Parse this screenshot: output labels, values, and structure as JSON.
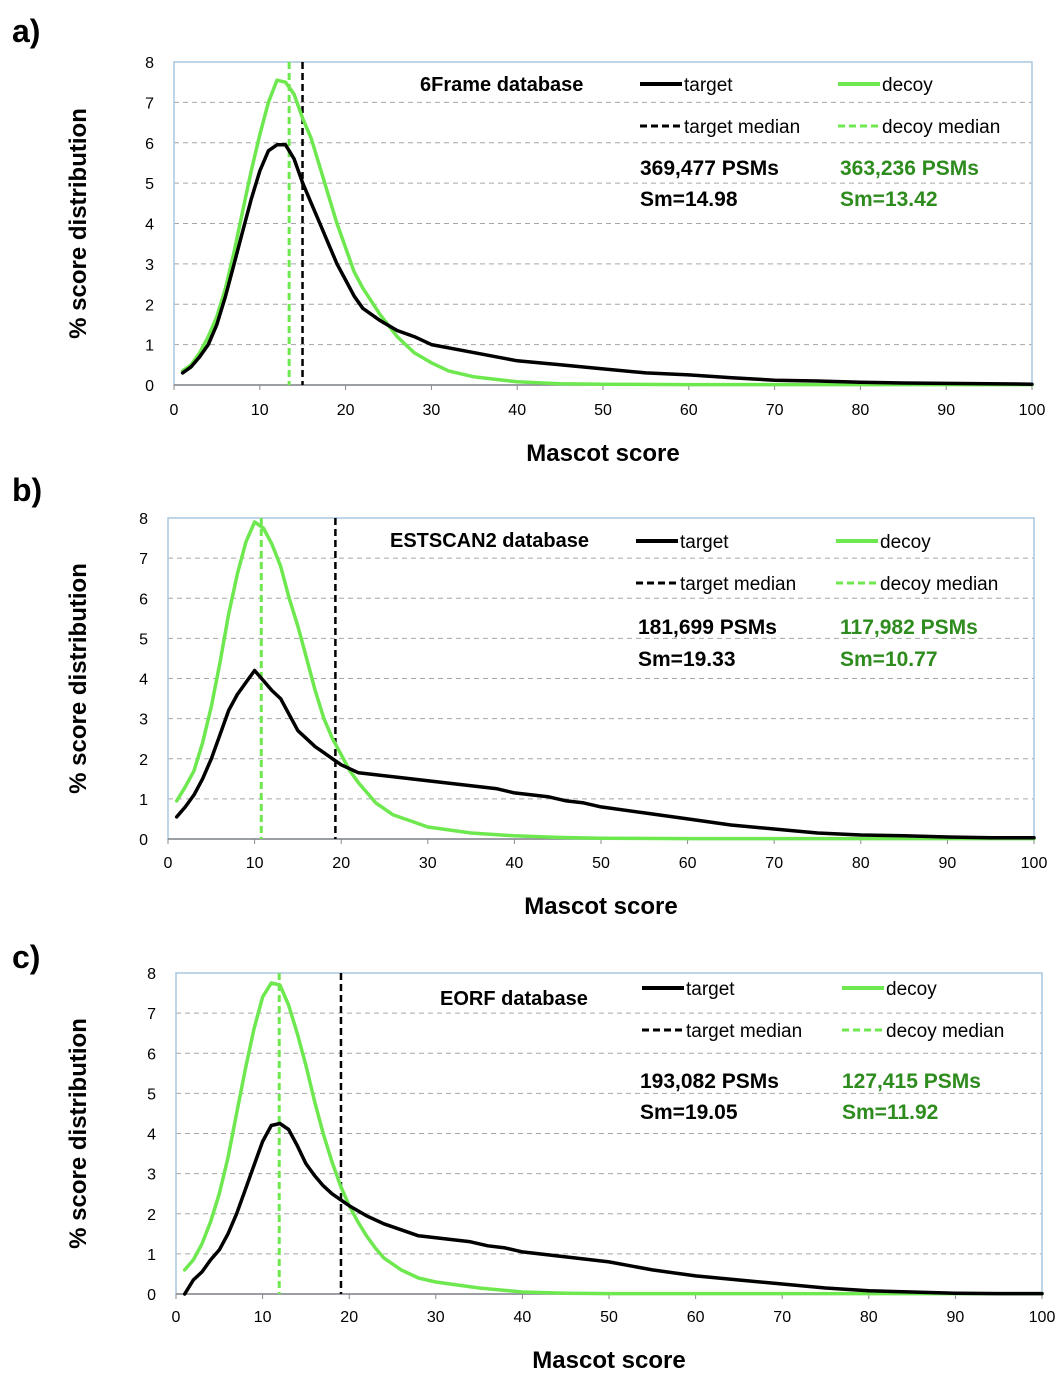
{
  "colors": {
    "target": "#000000",
    "decoy": "#6ee84f",
    "decoy_text": "#2e8b1e",
    "frame": "#a9c5df",
    "grid": "#a6a6a6"
  },
  "chart_data": [
    {
      "panel": "a)",
      "type": "line",
      "title": "6Frame database",
      "xlabel": "Mascot score",
      "ylabel": "% score distribution",
      "xlim": [
        0,
        100
      ],
      "ylim": [
        0,
        8
      ],
      "xticks": [
        "0",
        "10",
        "20",
        "30",
        "40",
        "50",
        "60",
        "70",
        "80",
        "90",
        "100"
      ],
      "yticks": [
        "0",
        "1",
        "2",
        "3",
        "4",
        "5",
        "6",
        "7",
        "8"
      ],
      "grid": "horizontal dashed",
      "legend": {
        "placement": "top-right",
        "target": "target",
        "decoy": "decoy",
        "target_median": "target median",
        "decoy_median": "decoy median"
      },
      "stats": {
        "target_psms": "369,477 PSMs",
        "target_sm": "Sm=14.98",
        "decoy_psms": "363,236 PSMs",
        "decoy_sm": "Sm=13.42"
      },
      "medians": {
        "target": 14.98,
        "decoy": 13.42
      },
      "series": [
        {
          "name": "target",
          "x": [
            1,
            2,
            3,
            4,
            5,
            6,
            7,
            8,
            9,
            10,
            11,
            12,
            13,
            14,
            15,
            16,
            17,
            18,
            19,
            20,
            21,
            22,
            24,
            26,
            28,
            30,
            35,
            40,
            45,
            50,
            55,
            60,
            65,
            70,
            75,
            80,
            85,
            90,
            95,
            100
          ],
          "values": [
            0.3,
            0.45,
            0.7,
            1.0,
            1.5,
            2.2,
            3.0,
            3.8,
            4.6,
            5.3,
            5.8,
            5.95,
            5.95,
            5.6,
            5.0,
            4.5,
            4.0,
            3.5,
            3.0,
            2.6,
            2.2,
            1.9,
            1.6,
            1.35,
            1.2,
            1.0,
            0.8,
            0.6,
            0.5,
            0.4,
            0.3,
            0.25,
            0.18,
            0.12,
            0.1,
            0.07,
            0.05,
            0.04,
            0.03,
            0.02
          ]
        },
        {
          "name": "decoy",
          "x": [
            1,
            2,
            3,
            4,
            5,
            6,
            7,
            8,
            9,
            10,
            11,
            12,
            13,
            14,
            15,
            16,
            17,
            18,
            19,
            20,
            21,
            22,
            24,
            26,
            28,
            30,
            32,
            35,
            40,
            45,
            50,
            60,
            70,
            80,
            90,
            100
          ],
          "values": [
            0.35,
            0.5,
            0.8,
            1.2,
            1.7,
            2.4,
            3.3,
            4.3,
            5.3,
            6.2,
            7.0,
            7.55,
            7.5,
            7.2,
            6.6,
            6.1,
            5.4,
            4.7,
            4.0,
            3.4,
            2.8,
            2.4,
            1.75,
            1.2,
            0.8,
            0.55,
            0.35,
            0.2,
            0.08,
            0.03,
            0.02,
            0.01,
            0.01,
            0.01,
            0.01,
            0.01
          ]
        }
      ]
    },
    {
      "panel": "b)",
      "type": "line",
      "title": "ESTSCAN2 database",
      "xlabel": "Mascot score",
      "ylabel": "% score distribution",
      "xlim": [
        0,
        100
      ],
      "ylim": [
        0,
        8
      ],
      "xticks": [
        "0",
        "10",
        "20",
        "30",
        "40",
        "50",
        "60",
        "70",
        "80",
        "90",
        "100"
      ],
      "yticks": [
        "0",
        "1",
        "2",
        "3",
        "4",
        "5",
        "6",
        "7",
        "8"
      ],
      "grid": "horizontal dashed",
      "legend": {
        "placement": "top-right",
        "target": "target",
        "decoy": "decoy",
        "target_median": "target median",
        "decoy_median": "decoy median"
      },
      "stats": {
        "target_psms": "181,699 PSMs",
        "target_sm": "Sm=19.33",
        "decoy_psms": "117,982 PSMs",
        "decoy_sm": "Sm=10.77"
      },
      "medians": {
        "target": 19.33,
        "decoy": 10.77
      },
      "series": [
        {
          "name": "target",
          "x": [
            1,
            2,
            3,
            4,
            5,
            6,
            7,
            8,
            9,
            10,
            11,
            12,
            13,
            14,
            15,
            16,
            17,
            18,
            19,
            20,
            22,
            24,
            26,
            28,
            30,
            32,
            34,
            36,
            38,
            40,
            42,
            44,
            46,
            48,
            50,
            55,
            60,
            65,
            70,
            75,
            80,
            85,
            90,
            95,
            100
          ],
          "values": [
            0.55,
            0.8,
            1.1,
            1.5,
            2.0,
            2.6,
            3.2,
            3.6,
            3.9,
            4.2,
            3.95,
            3.7,
            3.5,
            3.1,
            2.7,
            2.5,
            2.3,
            2.15,
            2.0,
            1.85,
            1.65,
            1.6,
            1.55,
            1.5,
            1.45,
            1.4,
            1.35,
            1.3,
            1.25,
            1.15,
            1.1,
            1.05,
            0.95,
            0.9,
            0.8,
            0.65,
            0.5,
            0.35,
            0.25,
            0.15,
            0.1,
            0.08,
            0.05,
            0.03,
            0.03
          ]
        },
        {
          "name": "decoy",
          "x": [
            1,
            2,
            3,
            4,
            5,
            6,
            7,
            8,
            9,
            10,
            11,
            12,
            13,
            14,
            15,
            16,
            17,
            18,
            19,
            20,
            21,
            22,
            23,
            24,
            26,
            28,
            30,
            35,
            40,
            45,
            50,
            60,
            70,
            80,
            90,
            100
          ],
          "values": [
            0.95,
            1.3,
            1.7,
            2.4,
            3.3,
            4.4,
            5.6,
            6.6,
            7.4,
            7.9,
            7.75,
            7.35,
            6.8,
            6.0,
            5.3,
            4.5,
            3.7,
            3.0,
            2.5,
            2.1,
            1.7,
            1.4,
            1.15,
            0.9,
            0.6,
            0.45,
            0.3,
            0.15,
            0.08,
            0.04,
            0.02,
            0.01,
            0.01,
            0.01,
            0.01,
            0.01
          ]
        }
      ]
    },
    {
      "panel": "c)",
      "type": "line",
      "title": "EORF database",
      "xlabel": "Mascot score",
      "ylabel": "% score distribution",
      "xlim": [
        0,
        100
      ],
      "ylim": [
        0,
        8
      ],
      "xticks": [
        "0",
        "10",
        "20",
        "30",
        "40",
        "50",
        "60",
        "70",
        "80",
        "90",
        "100"
      ],
      "yticks": [
        "0",
        "1",
        "2",
        "3",
        "4",
        "5",
        "6",
        "7",
        "8"
      ],
      "grid": "horizontal dashed",
      "legend": {
        "placement": "top-right",
        "target": "target",
        "decoy": "decoy",
        "target_median": "target median",
        "decoy_median": "decoy median"
      },
      "stats": {
        "target_psms": "193,082 PSMs",
        "target_sm": "Sm=19.05",
        "decoy_psms": "127,415 PSMs",
        "decoy_sm": "Sm=11.92"
      },
      "medians": {
        "target": 19.05,
        "decoy": 11.92
      },
      "series": [
        {
          "name": "target",
          "x": [
            1,
            2,
            3,
            4,
            5,
            6,
            7,
            8,
            9,
            10,
            11,
            12,
            13,
            14,
            15,
            16,
            17,
            18,
            19,
            20,
            22,
            24,
            26,
            28,
            30,
            32,
            34,
            36,
            38,
            40,
            42,
            44,
            46,
            48,
            50,
            55,
            60,
            65,
            70,
            75,
            80,
            85,
            90,
            95,
            100
          ],
          "values": [
            0.0,
            0.35,
            0.55,
            0.85,
            1.1,
            1.5,
            2.0,
            2.6,
            3.2,
            3.8,
            4.2,
            4.25,
            4.1,
            3.7,
            3.25,
            2.95,
            2.7,
            2.5,
            2.35,
            2.2,
            1.95,
            1.75,
            1.6,
            1.45,
            1.4,
            1.35,
            1.3,
            1.2,
            1.15,
            1.05,
            1.0,
            0.95,
            0.9,
            0.85,
            0.8,
            0.6,
            0.45,
            0.35,
            0.25,
            0.15,
            0.08,
            0.05,
            0.02,
            0.01,
            0.01
          ]
        },
        {
          "name": "decoy",
          "x": [
            1,
            2,
            3,
            4,
            5,
            6,
            7,
            8,
            9,
            10,
            11,
            12,
            13,
            14,
            15,
            16,
            17,
            18,
            19,
            20,
            21,
            22,
            23,
            24,
            26,
            28,
            30,
            35,
            40,
            45,
            50,
            60,
            70,
            80,
            90,
            100
          ],
          "values": [
            0.6,
            0.85,
            1.25,
            1.8,
            2.5,
            3.4,
            4.5,
            5.6,
            6.6,
            7.4,
            7.75,
            7.7,
            7.2,
            6.5,
            5.7,
            4.8,
            4.0,
            3.3,
            2.7,
            2.2,
            1.8,
            1.45,
            1.15,
            0.9,
            0.6,
            0.4,
            0.3,
            0.15,
            0.05,
            0.02,
            0.01,
            0.01,
            0.01,
            0.01,
            0.01,
            0.01
          ]
        }
      ]
    }
  ]
}
